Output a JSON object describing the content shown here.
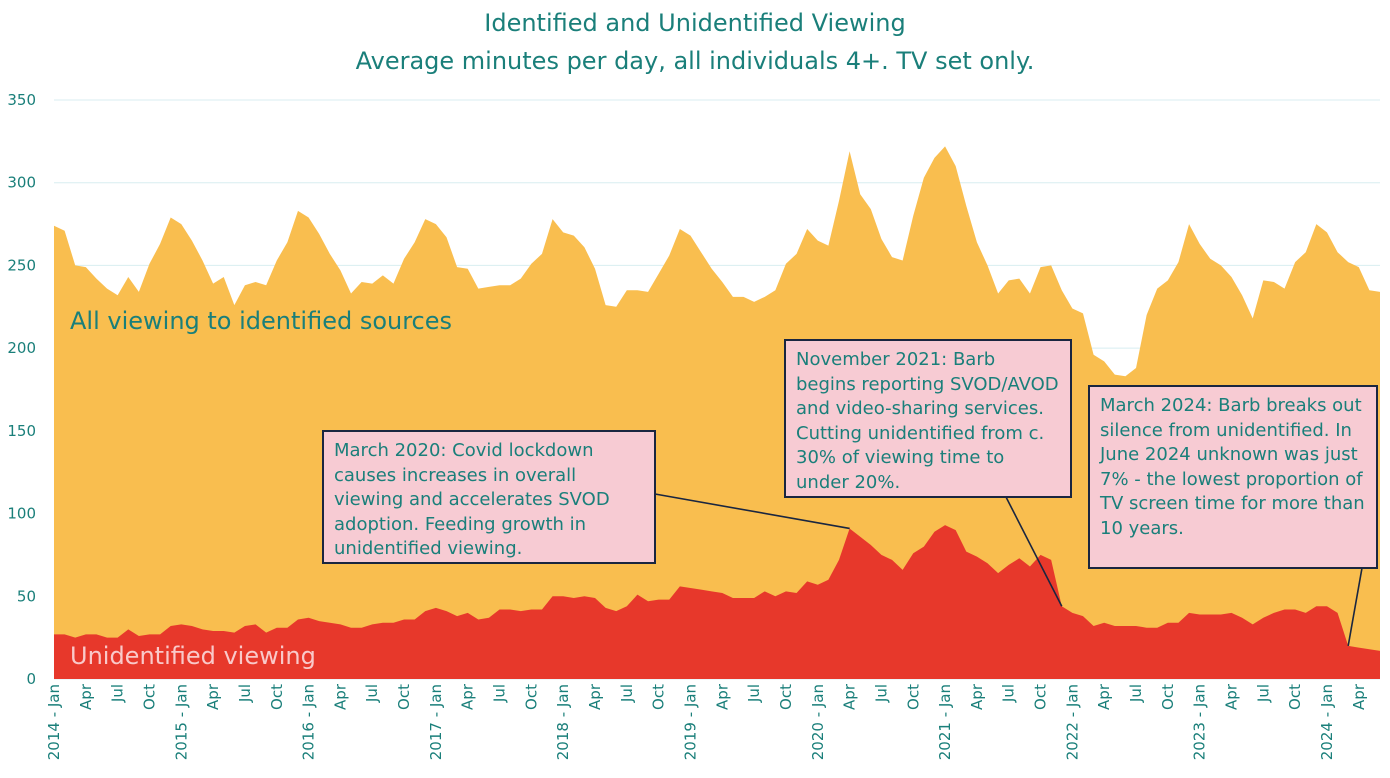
{
  "chart_data": {
    "type": "area",
    "title": "Identified and Unidentified Viewing",
    "subtitle": "Average minutes per day, all individuals 4+. TV set only.",
    "ylim": [
      0,
      350
    ],
    "yticks": [
      0,
      50,
      100,
      150,
      200,
      250,
      300,
      350
    ],
    "grid": true,
    "x_start": "2014-01",
    "x_tick_labels": [
      "2014 - Jan",
      "Apr",
      "Jul",
      "Oct",
      "2015 - Jan",
      "Apr",
      "Jul",
      "Oct",
      "2016 - Jan",
      "Apr",
      "Jul",
      "Oct",
      "2017 - Jan",
      "Apr",
      "Jul",
      "Oct",
      "2018 - Jan",
      "Apr",
      "Jul",
      "Oct",
      "2019 - Jan",
      "Apr",
      "Jul",
      "Oct",
      "2020 - Jan",
      "Apr",
      "Jul",
      "Oct",
      "2021 - Jan",
      "Apr",
      "Jul",
      "Oct",
      "2022 - Jan",
      "Apr",
      "Jul",
      "Oct",
      "2023 - Jan",
      "Apr",
      "Jul",
      "Oct",
      "2024 - Jan",
      "Apr"
    ],
    "series": [
      {
        "name": "All viewing to identified sources",
        "color": "#f9be4f",
        "values": [
          274,
          271,
          250,
          249,
          242,
          236,
          232,
          243,
          234,
          251,
          263,
          279,
          275,
          265,
          253,
          239,
          243,
          226,
          238,
          240,
          238,
          253,
          264,
          283,
          279,
          269,
          257,
          247,
          233,
          240,
          239,
          244,
          239,
          254,
          264,
          278,
          275,
          267,
          249,
          248,
          236,
          237,
          238,
          238,
          242,
          251,
          257,
          278,
          270,
          268,
          261,
          248,
          226,
          225,
          235,
          235,
          234,
          245,
          256,
          272,
          268,
          258,
          248,
          240,
          231,
          231,
          228,
          231,
          235,
          251,
          257,
          272,
          265,
          262,
          289,
          319,
          293,
          284,
          266,
          255,
          253,
          280,
          303,
          315,
          322,
          310,
          286,
          264,
          250,
          233,
          241,
          242,
          233,
          249,
          250,
          235,
          224,
          221,
          196,
          192,
          184,
          183,
          188,
          220,
          236,
          241,
          252,
          275,
          263,
          254,
          250,
          243,
          232,
          218,
          241,
          240,
          236,
          252,
          258,
          275,
          270,
          258,
          252,
          249,
          235,
          234
        ],
        "annotation": "All viewing to identified sources"
      },
      {
        "name": "Unidentified viewing",
        "color": "#e7382b",
        "values": [
          27,
          27,
          25,
          27,
          27,
          25,
          25,
          30,
          26,
          27,
          27,
          32,
          33,
          32,
          30,
          29,
          29,
          28,
          32,
          33,
          28,
          31,
          31,
          36,
          37,
          35,
          34,
          33,
          31,
          31,
          33,
          34,
          34,
          36,
          36,
          41,
          43,
          41,
          38,
          40,
          36,
          37,
          42,
          42,
          41,
          42,
          42,
          50,
          50,
          49,
          50,
          49,
          43,
          41,
          44,
          51,
          47,
          48,
          48,
          56,
          55,
          54,
          53,
          52,
          49,
          49,
          49,
          53,
          50,
          53,
          52,
          59,
          57,
          60,
          72,
          91,
          86,
          81,
          75,
          72,
          66,
          76,
          80,
          89,
          93,
          90,
          77,
          74,
          70,
          64,
          69,
          73,
          68,
          75,
          72,
          44,
          40,
          38,
          32,
          34,
          32,
          32,
          32,
          31,
          31,
          34,
          34,
          40,
          39,
          39,
          39,
          40,
          37,
          33,
          37,
          40,
          42,
          42,
          40,
          44,
          44,
          40,
          20,
          19,
          18,
          17
        ],
        "annotation": "Unidentified viewing"
      }
    ],
    "callouts": [
      {
        "text": "March 2020: Covid lockdown causes increases in overall viewing and accelerates SVOD adoption. Feeding growth in unidentified viewing.",
        "target_index": 75
      },
      {
        "text": "November 2021: Barb begins reporting SVOD/AVOD and video-sharing services. Cutting unidentified from c. 30% of viewing time to under 20%.",
        "target_index": 95
      },
      {
        "text": "March 2024: Barb breaks out silence from unidentified. In June 2024 unknown was just 7% - the lowest proportion of TV screen time for more than 10 years.",
        "target_index": 122
      }
    ]
  }
}
